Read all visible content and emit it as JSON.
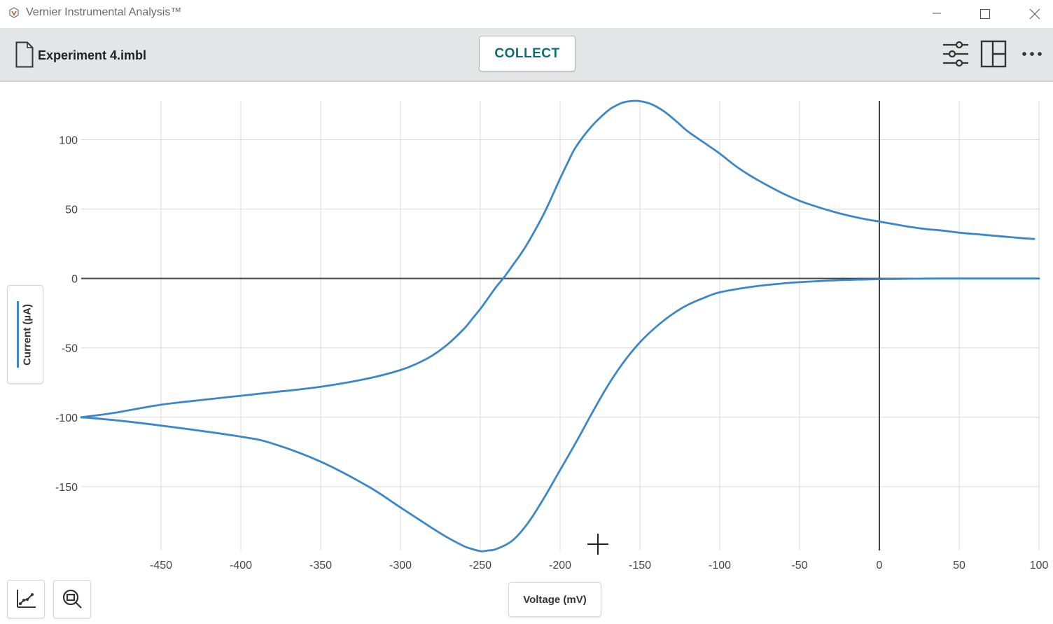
{
  "window": {
    "title": "Vernier Instrumental Analysis™",
    "controls": [
      "minimize-icon",
      "maximize-icon",
      "close-icon"
    ]
  },
  "toolbar": {
    "file_name": "Experiment 4.imbl",
    "collect_label": "COLLECT",
    "icons": [
      "settings-sliders-icon",
      "layout-panels-icon",
      "more-options-icon"
    ]
  },
  "graph": {
    "y_axis_button_label": "Current (µA)",
    "x_axis_button_label": "Voltage (mV)",
    "bottom_tools": [
      "graph-tools-icon",
      "zoom-icon"
    ],
    "colors": {
      "series": "#3b87c8",
      "grid": "#d9d9d9",
      "axis": "#444444",
      "accent": "#0e6f6f"
    }
  },
  "chart_data": {
    "type": "line",
    "title": "",
    "xlabel": "Voltage (mV)",
    "ylabel": "Current (µA)",
    "xlim": [
      -500,
      100
    ],
    "ylim": [
      -196,
      128
    ],
    "x_ticks": [
      -450,
      -400,
      -350,
      -300,
      -250,
      -200,
      -150,
      -100,
      -50,
      0,
      50,
      100
    ],
    "y_ticks": [
      -150,
      -100,
      -50,
      0,
      50,
      100
    ],
    "grid": true,
    "series": [
      {
        "x": [
          -500,
          -480,
          -450,
          -420,
          -400,
          -380,
          -350,
          -320,
          -300,
          -290,
          -280,
          -270,
          -260,
          -255,
          -250,
          -245,
          -240,
          -235,
          -230,
          -225,
          -220,
          -210,
          -200,
          -195,
          -190,
          -180,
          -170,
          -165,
          -160,
          -152,
          -145,
          -140,
          -135,
          -130,
          -125,
          -120,
          -110,
          -100,
          -90,
          -80,
          -70,
          -60,
          -50,
          -40,
          -30,
          -20,
          -10,
          0,
          10,
          20,
          30,
          40,
          50,
          60,
          70,
          80,
          90,
          97
        ],
        "y": [
          -100,
          -97,
          -91,
          -87,
          -84.5,
          -82,
          -78,
          -72,
          -66,
          -61.5,
          -55.5,
          -47,
          -36,
          -29,
          -22,
          -14,
          -6,
          1,
          9,
          17,
          26,
          47,
          72,
          84,
          95,
          110,
          121,
          124.5,
          127,
          128,
          126.5,
          124,
          120.5,
          116,
          111,
          106,
          98,
          90,
          81,
          73.5,
          67,
          61,
          56,
          52,
          48.5,
          45.5,
          43,
          41,
          39,
          37,
          35.5,
          34.5,
          33,
          32,
          31,
          30,
          29,
          28.5
        ]
      },
      {
        "x": [
          100,
          80,
          60,
          40,
          20,
          0,
          -20,
          -40,
          -60,
          -80,
          -100,
          -110,
          -120,
          -130,
          -140,
          -150,
          -160,
          -170,
          -180,
          -190,
          -200,
          -210,
          -220,
          -230,
          -240,
          -245,
          -248,
          -250,
          -255,
          -260,
          -270,
          -280,
          -300,
          -320,
          -350,
          -380,
          -400,
          -450,
          -480,
          -500
        ],
        "y": [
          0,
          0,
          0,
          0,
          -0.2,
          -0.5,
          -1,
          -2,
          -3.5,
          -6,
          -10,
          -14,
          -19,
          -26,
          -35,
          -46,
          -60,
          -77,
          -97,
          -118,
          -138,
          -158,
          -176,
          -189,
          -195,
          -196,
          -196.5,
          -196.5,
          -195,
          -193,
          -187,
          -180,
          -165,
          -150,
          -132,
          -119,
          -114,
          -106,
          -102,
          -100
        ]
      }
    ]
  }
}
